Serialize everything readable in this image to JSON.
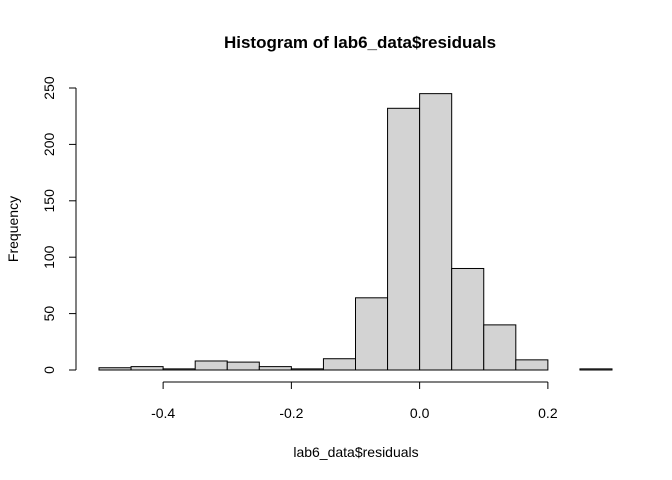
{
  "chart_data": {
    "type": "bar",
    "subtype": "histogram",
    "title": "Histogram of lab6_data$residuals",
    "xlabel": "lab6_data$residuals",
    "ylabel": "Frequency",
    "xlim": [
      -0.5,
      0.3
    ],
    "ylim": [
      0,
      250
    ],
    "x_ticks": [
      -0.4,
      -0.2,
      0.0,
      0.2
    ],
    "x_tick_labels": [
      "-0.4",
      "-0.2",
      "0.0",
      "0.2"
    ],
    "y_ticks": [
      0,
      50,
      100,
      150,
      200,
      250
    ],
    "y_tick_labels": [
      "0",
      "50",
      "100",
      "150",
      "200",
      "250"
    ],
    "bin_width": 0.05,
    "bins": [
      {
        "from": -0.5,
        "to": -0.45,
        "count": 2
      },
      {
        "from": -0.45,
        "to": -0.4,
        "count": 3
      },
      {
        "from": -0.4,
        "to": -0.35,
        "count": 1
      },
      {
        "from": -0.35,
        "to": -0.3,
        "count": 8
      },
      {
        "from": -0.3,
        "to": -0.25,
        "count": 7
      },
      {
        "from": -0.25,
        "to": -0.2,
        "count": 3
      },
      {
        "from": -0.2,
        "to": -0.15,
        "count": 1
      },
      {
        "from": -0.15,
        "to": -0.1,
        "count": 10
      },
      {
        "from": -0.1,
        "to": -0.05,
        "count": 64
      },
      {
        "from": -0.05,
        "to": 0.0,
        "count": 232
      },
      {
        "from": 0.0,
        "to": 0.05,
        "count": 245
      },
      {
        "from": 0.05,
        "to": 0.1,
        "count": 90
      },
      {
        "from": 0.1,
        "to": 0.15,
        "count": 40
      },
      {
        "from": 0.15,
        "to": 0.2,
        "count": 9
      },
      {
        "from": 0.2,
        "to": 0.25,
        "count": 0
      },
      {
        "from": 0.25,
        "to": 0.3,
        "count": 1
      }
    ],
    "bar_fill": "#d3d3d3",
    "bar_stroke": "#000000",
    "grid": false,
    "legend": "none"
  }
}
